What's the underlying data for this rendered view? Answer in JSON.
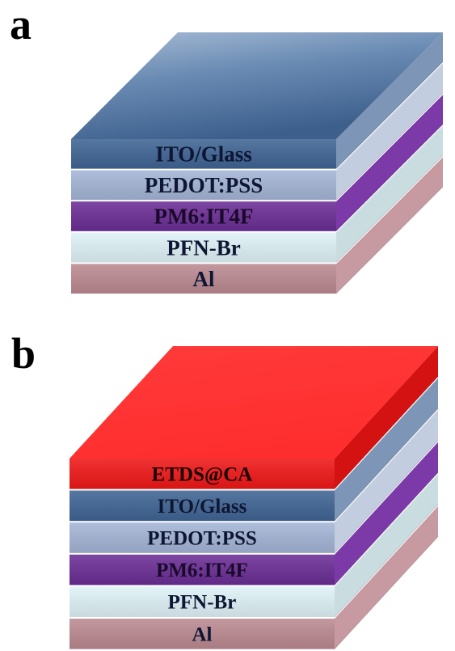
{
  "panels": [
    {
      "letter": "a",
      "layers": [
        {
          "label": "ITO/Glass",
          "front": "#3f6594",
          "side": "#7d96b8",
          "text": "#0e1633"
        },
        {
          "label": "PEDOT:PSS",
          "front": "#a3b5d6",
          "side": "#c2cde0",
          "text": "#0e1633"
        },
        {
          "label": "PM6:IT4F",
          "front": "#6b2e96",
          "side": "#7b3aa8",
          "text": "#1a0a2a"
        },
        {
          "label": "PFN-Br",
          "front": "#dff3f7",
          "side": "#c9dde1",
          "text": "#0e1633"
        },
        {
          "label": "Al",
          "front": "#bc8a92",
          "side": "#c79aa2",
          "text": "#0e1633"
        }
      ],
      "top_color": "#4d6f9d"
    },
    {
      "letter": "b",
      "layers": [
        {
          "label": "ETDS@CA",
          "front": "#f01818",
          "side": "#d41212",
          "text": "#1a0000"
        },
        {
          "label": "ITO/Glass",
          "front": "#3f6594",
          "side": "#7d96b8",
          "text": "#0e1633"
        },
        {
          "label": "PEDOT:PSS",
          "front": "#a3b5d6",
          "side": "#c2cde0",
          "text": "#0e1633"
        },
        {
          "label": "PM6:IT4F",
          "front": "#6b2e96",
          "side": "#7b3aa8",
          "text": "#1a0a2a"
        },
        {
          "label": "PFN-Br",
          "front": "#dff3f7",
          "side": "#c9dde1",
          "text": "#0e1633"
        },
        {
          "label": "Al",
          "front": "#bc8a92",
          "side": "#c79aa2",
          "text": "#0e1633"
        }
      ],
      "top_color": "#ff3333"
    }
  ]
}
